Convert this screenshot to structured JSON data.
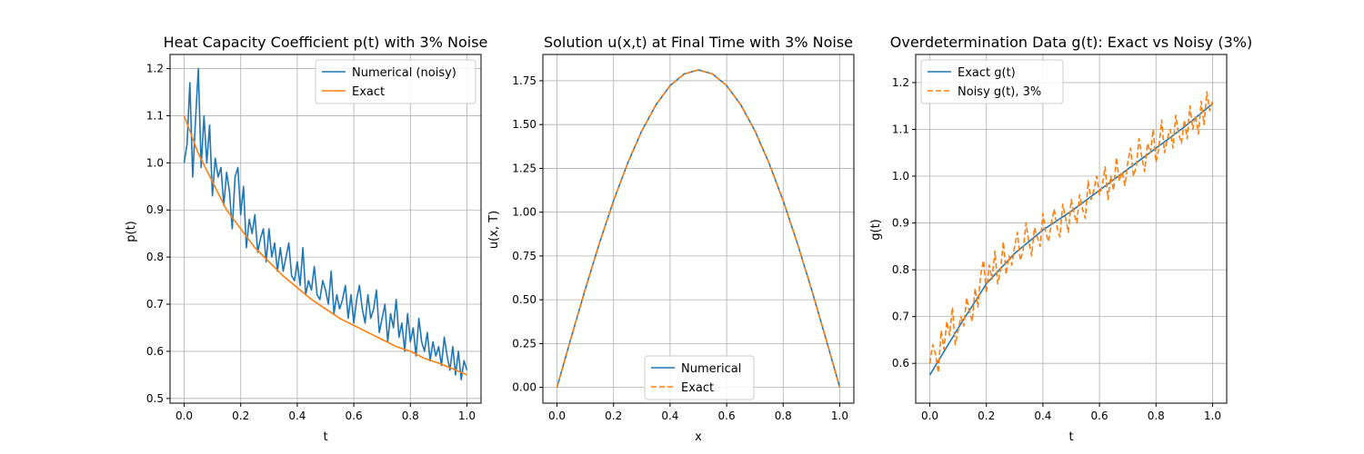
{
  "figure": {
    "background": "#ffffff"
  },
  "colors": {
    "blue": "#1f77b4",
    "orange": "#ff7f0e",
    "grid": "#b0b0b0"
  },
  "chart_data": [
    {
      "type": "line",
      "title": "Heat Capacity Coefficient p(t) with 3% Noise",
      "xlabel": "t",
      "ylabel": "p(t)",
      "xlim": [
        -0.05,
        1.05
      ],
      "ylim": [
        0.49,
        1.23
      ],
      "xticks": [
        0.0,
        0.2,
        0.4,
        0.6,
        0.8,
        1.0
      ],
      "xtick_labels": [
        "0.0",
        "0.2",
        "0.4",
        "0.6",
        "0.8",
        "1.0"
      ],
      "yticks": [
        0.5,
        0.6,
        0.7,
        0.8,
        0.9,
        1.0,
        1.1,
        1.2
      ],
      "ytick_labels": [
        "0.5",
        "0.6",
        "0.7",
        "0.8",
        "0.9",
        "1.0",
        "1.1",
        "1.2"
      ],
      "grid": true,
      "legend": "upper right",
      "series": [
        {
          "name": "Numerical (noisy)",
          "color": "#1f77b4",
          "style": "solid",
          "x": [
            0.0,
            0.01,
            0.02,
            0.03,
            0.04,
            0.05,
            0.06,
            0.07,
            0.08,
            0.09,
            0.1,
            0.11,
            0.12,
            0.13,
            0.14,
            0.15,
            0.16,
            0.17,
            0.18,
            0.19,
            0.2,
            0.21,
            0.22,
            0.23,
            0.24,
            0.25,
            0.26,
            0.27,
            0.28,
            0.29,
            0.3,
            0.31,
            0.32,
            0.33,
            0.34,
            0.35,
            0.36,
            0.37,
            0.38,
            0.39,
            0.4,
            0.41,
            0.42,
            0.43,
            0.44,
            0.45,
            0.46,
            0.47,
            0.48,
            0.49,
            0.5,
            0.51,
            0.52,
            0.53,
            0.54,
            0.55,
            0.56,
            0.57,
            0.58,
            0.59,
            0.6,
            0.61,
            0.62,
            0.63,
            0.64,
            0.65,
            0.66,
            0.67,
            0.68,
            0.69,
            0.7,
            0.71,
            0.72,
            0.73,
            0.74,
            0.75,
            0.76,
            0.77,
            0.78,
            0.79,
            0.8,
            0.81,
            0.82,
            0.83,
            0.84,
            0.85,
            0.86,
            0.87,
            0.88,
            0.89,
            0.9,
            0.91,
            0.92,
            0.93,
            0.94,
            0.95,
            0.96,
            0.97,
            0.98,
            0.99,
            1.0
          ],
          "y": [
            1.0,
            1.04,
            1.17,
            0.97,
            1.09,
            1.2,
            0.99,
            1.1,
            1.0,
            1.08,
            0.93,
            1.01,
            0.97,
            0.99,
            0.91,
            0.98,
            0.94,
            0.86,
            0.97,
            0.99,
            0.89,
            0.95,
            0.82,
            0.88,
            0.85,
            0.89,
            0.81,
            0.84,
            0.86,
            0.79,
            0.86,
            0.8,
            0.83,
            0.77,
            0.82,
            0.77,
            0.8,
            0.83,
            0.76,
            0.75,
            0.79,
            0.74,
            0.82,
            0.72,
            0.75,
            0.73,
            0.78,
            0.72,
            0.71,
            0.75,
            0.73,
            0.7,
            0.77,
            0.68,
            0.72,
            0.69,
            0.71,
            0.74,
            0.67,
            0.72,
            0.66,
            0.71,
            0.74,
            0.69,
            0.66,
            0.72,
            0.67,
            0.69,
            0.73,
            0.64,
            0.67,
            0.7,
            0.62,
            0.68,
            0.65,
            0.71,
            0.63,
            0.66,
            0.6,
            0.68,
            0.62,
            0.65,
            0.59,
            0.67,
            0.62,
            0.6,
            0.64,
            0.58,
            0.62,
            0.59,
            0.61,
            0.57,
            0.63,
            0.59,
            0.56,
            0.61,
            0.55,
            0.6,
            0.54,
            0.58,
            0.56
          ]
        },
        {
          "name": "Exact",
          "color": "#ff7f0e",
          "style": "solid",
          "x": [
            0.0,
            0.05,
            0.1,
            0.15,
            0.2,
            0.25,
            0.3,
            0.35,
            0.4,
            0.45,
            0.5,
            0.55,
            0.6,
            0.65,
            0.7,
            0.75,
            0.8,
            0.85,
            0.9,
            0.95,
            1.0
          ],
          "y": [
            1.1,
            1.02,
            0.96,
            0.9,
            0.86,
            0.82,
            0.79,
            0.76,
            0.735,
            0.71,
            0.69,
            0.67,
            0.655,
            0.64,
            0.625,
            0.61,
            0.6,
            0.585,
            0.575,
            0.563,
            0.55
          ]
        }
      ]
    },
    {
      "type": "line",
      "title": "Solution u(x,t) at Final Time with 3% Noise",
      "xlabel": "x",
      "ylabel": "u(x, T)",
      "xlim": [
        -0.05,
        1.05
      ],
      "ylim": [
        -0.09,
        1.9
      ],
      "xticks": [
        0.0,
        0.2,
        0.4,
        0.6,
        0.8,
        1.0
      ],
      "xtick_labels": [
        "0.0",
        "0.2",
        "0.4",
        "0.6",
        "0.8",
        "1.0"
      ],
      "yticks": [
        0.0,
        0.25,
        0.5,
        0.75,
        1.0,
        1.25,
        1.5,
        1.75
      ],
      "ytick_labels": [
        "0.00",
        "0.25",
        "0.50",
        "0.75",
        "1.00",
        "1.25",
        "1.50",
        "1.75"
      ],
      "grid": true,
      "legend": "lower center",
      "series": [
        {
          "name": "Numerical",
          "color": "#1f77b4",
          "style": "solid",
          "x": [
            0.0,
            0.05,
            0.1,
            0.15,
            0.2,
            0.25,
            0.3,
            0.35,
            0.4,
            0.45,
            0.5,
            0.55,
            0.6,
            0.65,
            0.7,
            0.75,
            0.8,
            0.85,
            0.9,
            0.95,
            1.0
          ],
          "y": [
            0.0,
            0.284,
            0.56,
            0.823,
            1.065,
            1.28,
            1.464,
            1.613,
            1.722,
            1.789,
            1.812,
            1.789,
            1.722,
            1.613,
            1.464,
            1.28,
            1.065,
            0.823,
            0.56,
            0.284,
            0.0
          ]
        },
        {
          "name": "Exact",
          "color": "#ff7f0e",
          "style": "dashed",
          "x": [
            0.0,
            0.05,
            0.1,
            0.15,
            0.2,
            0.25,
            0.3,
            0.35,
            0.4,
            0.45,
            0.5,
            0.55,
            0.6,
            0.65,
            0.7,
            0.75,
            0.8,
            0.85,
            0.9,
            0.95,
            1.0
          ],
          "y": [
            0.0,
            0.284,
            0.56,
            0.823,
            1.065,
            1.28,
            1.464,
            1.613,
            1.722,
            1.789,
            1.812,
            1.789,
            1.722,
            1.613,
            1.464,
            1.28,
            1.065,
            0.823,
            0.56,
            0.284,
            0.0
          ]
        }
      ]
    },
    {
      "type": "line",
      "title": "Overdetermination Data g(t): Exact vs Noisy (3%)",
      "xlabel": "t",
      "ylabel": "g(t)",
      "xlim": [
        -0.05,
        1.05
      ],
      "ylim": [
        0.515,
        1.26
      ],
      "xticks": [
        0.0,
        0.2,
        0.4,
        0.6,
        0.8,
        1.0
      ],
      "xtick_labels": [
        "0.0",
        "0.2",
        "0.4",
        "0.6",
        "0.8",
        "1.0"
      ],
      "yticks": [
        0.6,
        0.7,
        0.8,
        0.9,
        1.0,
        1.1,
        1.2
      ],
      "ytick_labels": [
        "0.6",
        "0.7",
        "0.8",
        "0.9",
        "1.0",
        "1.1",
        "1.2"
      ],
      "grid": true,
      "legend": "upper left",
      "series": [
        {
          "name": "Exact g(t)",
          "color": "#1f77b4",
          "style": "solid",
          "x": [
            0.0,
            0.1,
            0.2,
            0.3,
            0.4,
            0.5,
            0.6,
            0.7,
            0.8,
            0.9,
            1.0
          ],
          "y": [
            0.575,
            0.675,
            0.77,
            0.835,
            0.885,
            0.925,
            0.97,
            1.015,
            1.06,
            1.105,
            1.155
          ]
        },
        {
          "name": "Noisy g(t), 3%",
          "color": "#ff7f0e",
          "style": "dashed",
          "x": [
            0.0,
            0.01,
            0.02,
            0.03,
            0.04,
            0.05,
            0.06,
            0.07,
            0.08,
            0.09,
            0.1,
            0.11,
            0.12,
            0.13,
            0.14,
            0.15,
            0.16,
            0.17,
            0.18,
            0.19,
            0.2,
            0.21,
            0.22,
            0.23,
            0.24,
            0.25,
            0.26,
            0.27,
            0.28,
            0.29,
            0.3,
            0.31,
            0.32,
            0.33,
            0.34,
            0.35,
            0.36,
            0.37,
            0.38,
            0.39,
            0.4,
            0.41,
            0.42,
            0.43,
            0.44,
            0.45,
            0.46,
            0.47,
            0.48,
            0.49,
            0.5,
            0.51,
            0.52,
            0.53,
            0.54,
            0.55,
            0.56,
            0.57,
            0.58,
            0.59,
            0.6,
            0.61,
            0.62,
            0.63,
            0.64,
            0.65,
            0.66,
            0.67,
            0.68,
            0.69,
            0.7,
            0.71,
            0.72,
            0.73,
            0.74,
            0.75,
            0.76,
            0.77,
            0.78,
            0.79,
            0.8,
            0.81,
            0.82,
            0.83,
            0.84,
            0.85,
            0.86,
            0.87,
            0.88,
            0.89,
            0.9,
            0.91,
            0.92,
            0.93,
            0.94,
            0.95,
            0.96,
            0.97,
            0.98,
            0.99,
            1.0
          ],
          "y": [
            0.6,
            0.64,
            0.62,
            0.58,
            0.67,
            0.63,
            0.69,
            0.66,
            0.72,
            0.64,
            0.67,
            0.7,
            0.68,
            0.74,
            0.71,
            0.69,
            0.76,
            0.72,
            0.79,
            0.82,
            0.75,
            0.81,
            0.78,
            0.84,
            0.77,
            0.8,
            0.86,
            0.79,
            0.83,
            0.81,
            0.85,
            0.88,
            0.82,
            0.84,
            0.9,
            0.86,
            0.83,
            0.89,
            0.87,
            0.85,
            0.92,
            0.88,
            0.86,
            0.9,
            0.93,
            0.89,
            0.87,
            0.94,
            0.91,
            0.88,
            0.95,
            0.92,
            0.9,
            0.96,
            0.93,
            0.91,
            0.99,
            0.95,
            0.97,
            1.0,
            0.96,
            0.98,
            1.02,
            0.95,
            1.0,
            0.97,
            1.04,
            0.99,
            1.01,
            0.98,
            1.03,
            1.06,
            1.0,
            1.02,
            1.08,
            1.04,
            1.01,
            1.07,
            1.05,
            1.1,
            1.03,
            1.06,
            1.12,
            1.05,
            1.08,
            1.1,
            1.06,
            1.13,
            1.09,
            1.07,
            1.12,
            1.08,
            1.15,
            1.1,
            1.13,
            1.09,
            1.16,
            1.11,
            1.18,
            1.14,
            1.16
          ]
        }
      ]
    }
  ]
}
